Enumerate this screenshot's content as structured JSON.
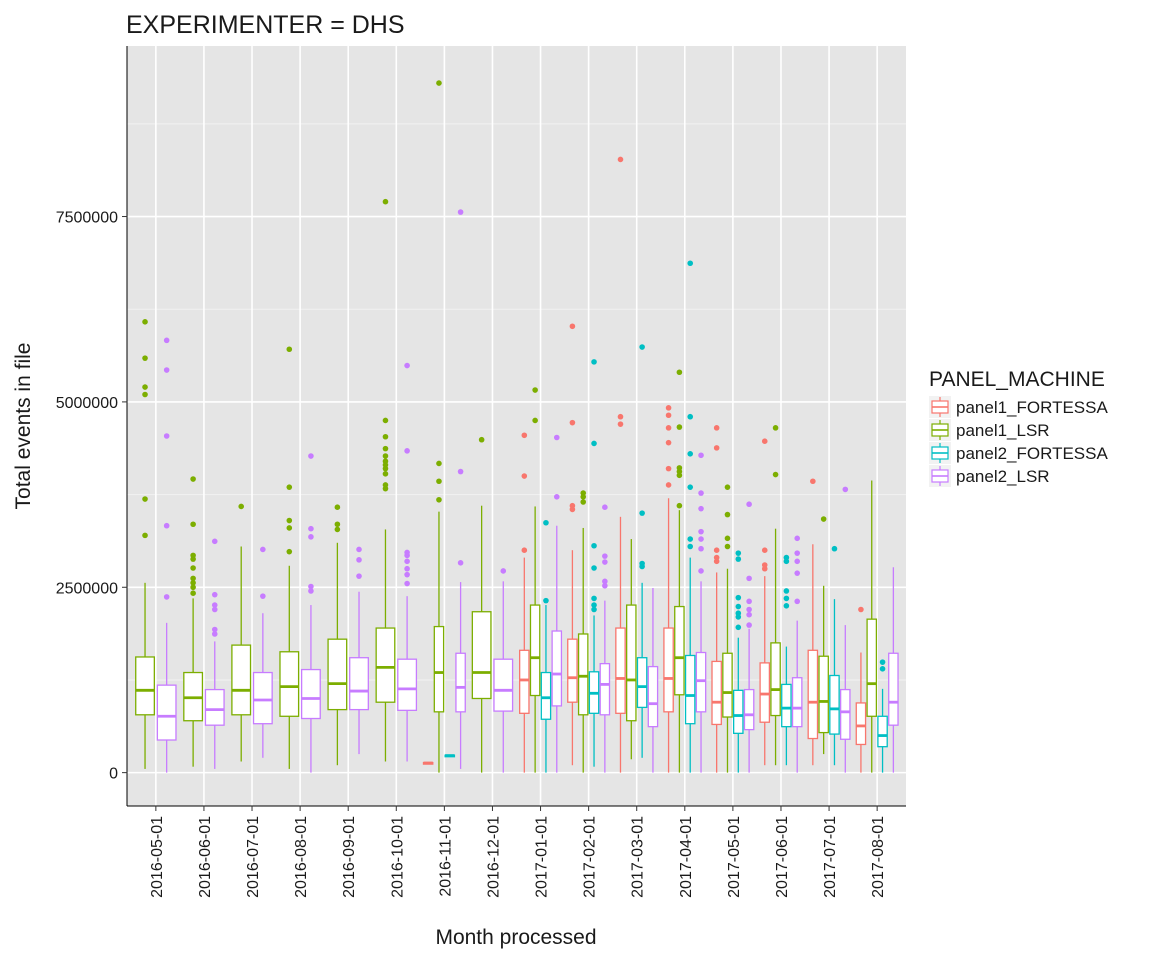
{
  "chart_data": {
    "type": "boxplot",
    "title": "EXPERIMENTER = DHS",
    "xlabel": "Month processed",
    "ylabel": "Total events in file",
    "ylim": [
      -450000,
      9800000
    ],
    "yticks": [
      0,
      2500000,
      5000000,
      7500000
    ],
    "ytick_labels": [
      "0",
      "2500000",
      "5000000",
      "7500000"
    ],
    "grid": true,
    "legend": {
      "title": "PANEL_MACHINE",
      "position": "right"
    },
    "categories": [
      "2016-05-01",
      "2016-06-01",
      "2016-07-01",
      "2016-08-01",
      "2016-09-01",
      "2016-10-01",
      "2016-11-01",
      "2016-12-01",
      "2017-01-01",
      "2017-02-01",
      "2017-03-01",
      "2017-04-01",
      "2017-05-01",
      "2017-06-01",
      "2017-07-01",
      "2017-08-01"
    ],
    "series": [
      {
        "name": "panel1_FORTESSA",
        "color": "#F8766D",
        "boxes": [
          {
            "cat": "2016-11-01",
            "lo": 130000,
            "q1": 130000,
            "med": 130000,
            "q3": 135000,
            "hi": 135000,
            "out": []
          },
          {
            "cat": "2017-01-01",
            "lo": 0,
            "q1": 800000,
            "med": 1250000,
            "q3": 1650000,
            "hi": 2900000,
            "out": [
              3000000,
              4000000,
              4550000
            ]
          },
          {
            "cat": "2017-02-01",
            "lo": 100000,
            "q1": 950000,
            "med": 1280000,
            "q3": 1800000,
            "hi": 3000000,
            "out": [
              3550000,
              3600000,
              4720000,
              6020000
            ]
          },
          {
            "cat": "2017-03-01",
            "lo": 0,
            "q1": 800000,
            "med": 1270000,
            "q3": 1950000,
            "hi": 3450000,
            "out": [
              4700000,
              4800000,
              8270000
            ]
          },
          {
            "cat": "2017-04-01",
            "lo": 0,
            "q1": 820000,
            "med": 1270000,
            "q3": 1950000,
            "hi": 3700000,
            "out": [
              3880000,
              4100000,
              4450000,
              4650000,
              4820000,
              4920000
            ]
          },
          {
            "cat": "2017-05-01",
            "lo": 0,
            "q1": 650000,
            "med": 950000,
            "q3": 1500000,
            "hi": 2700000,
            "out": [
              2850000,
              2900000,
              3000000,
              4380000,
              4650000
            ]
          },
          {
            "cat": "2017-06-01",
            "lo": 100000,
            "q1": 680000,
            "med": 1060000,
            "q3": 1480000,
            "hi": 2650000,
            "out": [
              2750000,
              2800000,
              3000000,
              4470000
            ]
          },
          {
            "cat": "2017-07-01",
            "lo": 100000,
            "q1": 460000,
            "med": 950000,
            "q3": 1650000,
            "hi": 3080000,
            "out": [
              3930000
            ]
          },
          {
            "cat": "2017-08-01",
            "lo": 0,
            "q1": 380000,
            "med": 630000,
            "q3": 940000,
            "hi": 1620000,
            "out": [
              2200000
            ]
          }
        ]
      },
      {
        "name": "panel1_LSR",
        "color": "#7CAE00",
        "boxes": [
          {
            "cat": "2016-05-01",
            "lo": 50000,
            "q1": 780000,
            "med": 1110000,
            "q3": 1560000,
            "hi": 2560000,
            "out": [
              3200000,
              3690000,
              5100000,
              5200000,
              5590000,
              6080000
            ]
          },
          {
            "cat": "2016-06-01",
            "lo": 80000,
            "q1": 700000,
            "med": 1010000,
            "q3": 1350000,
            "hi": 2350000,
            "out": [
              2420000,
              2500000,
              2560000,
              2620000,
              2760000,
              2880000,
              2930000,
              3350000,
              3960000
            ]
          },
          {
            "cat": "2016-07-01",
            "lo": 150000,
            "q1": 780000,
            "med": 1110000,
            "q3": 1720000,
            "hi": 3050000,
            "out": [
              3590000
            ]
          },
          {
            "cat": "2016-08-01",
            "lo": 50000,
            "q1": 760000,
            "med": 1160000,
            "q3": 1630000,
            "hi": 2790000,
            "out": [
              2980000,
              3300000,
              3400000,
              3850000,
              5710000
            ]
          },
          {
            "cat": "2016-09-01",
            "lo": 100000,
            "q1": 850000,
            "med": 1200000,
            "q3": 1800000,
            "hi": 3100000,
            "out": [
              3280000,
              3350000,
              3580000
            ]
          },
          {
            "cat": "2016-10-01",
            "lo": 150000,
            "q1": 950000,
            "med": 1420000,
            "q3": 1950000,
            "hi": 3280000,
            "out": [
              3830000,
              3880000,
              4030000,
              4100000,
              4150000,
              4200000,
              4270000,
              4370000,
              4530000,
              4750000,
              7700000
            ]
          },
          {
            "cat": "2016-11-01",
            "lo": 0,
            "q1": 820000,
            "med": 1350000,
            "q3": 1970000,
            "hi": 3520000,
            "out": [
              3680000,
              3930000,
              4170000,
              9300000
            ]
          },
          {
            "cat": "2016-12-01",
            "lo": 0,
            "q1": 1000000,
            "med": 1350000,
            "q3": 2170000,
            "hi": 3600000,
            "out": [
              4490000
            ]
          },
          {
            "cat": "2017-01-01",
            "lo": 0,
            "q1": 1040000,
            "med": 1550000,
            "q3": 2260000,
            "hi": 3590000,
            "out": [
              4750000,
              5160000
            ]
          },
          {
            "cat": "2017-02-01",
            "lo": 0,
            "q1": 780000,
            "med": 1300000,
            "q3": 1870000,
            "hi": 3300000,
            "out": [
              3650000,
              3720000,
              3770000
            ]
          },
          {
            "cat": "2017-03-01",
            "lo": 180000,
            "q1": 700000,
            "med": 1250000,
            "q3": 2260000,
            "hi": 3150000,
            "out": []
          },
          {
            "cat": "2017-04-01",
            "lo": 0,
            "q1": 1050000,
            "med": 1550000,
            "q3": 2240000,
            "hi": 3540000,
            "out": [
              3600000,
              4010000,
              4060000,
              4110000,
              4660000,
              5400000
            ]
          },
          {
            "cat": "2017-05-01",
            "lo": 0,
            "q1": 750000,
            "med": 1080000,
            "q3": 1610000,
            "hi": 2750000,
            "out": [
              3050000,
              3160000,
              3480000,
              3850000
            ]
          },
          {
            "cat": "2017-06-01",
            "lo": 100000,
            "q1": 770000,
            "med": 1120000,
            "q3": 1750000,
            "hi": 3290000,
            "out": [
              4020000,
              4650000
            ]
          },
          {
            "cat": "2017-07-01",
            "lo": 250000,
            "q1": 540000,
            "med": 960000,
            "q3": 1570000,
            "hi": 2520000,
            "out": [
              3420000
            ]
          },
          {
            "cat": "2017-08-01",
            "lo": 0,
            "q1": 760000,
            "med": 1200000,
            "q3": 2070000,
            "hi": 3940000,
            "out": []
          }
        ]
      },
      {
        "name": "panel2_FORTESSA",
        "color": "#00BFC4",
        "boxes": [
          {
            "cat": "2016-11-01",
            "lo": 230000,
            "q1": 230000,
            "med": 230000,
            "q3": 235000,
            "hi": 235000,
            "out": []
          },
          {
            "cat": "2017-01-01",
            "lo": 0,
            "q1": 720000,
            "med": 1010000,
            "q3": 1350000,
            "hi": 2260000,
            "out": [
              2320000,
              3370000
            ]
          },
          {
            "cat": "2017-02-01",
            "lo": 80000,
            "q1": 800000,
            "med": 1070000,
            "q3": 1360000,
            "hi": 2120000,
            "out": [
              2200000,
              2260000,
              2350000,
              2760000,
              3060000,
              4440000,
              5540000
            ]
          },
          {
            "cat": "2017-03-01",
            "lo": 200000,
            "q1": 880000,
            "med": 1160000,
            "q3": 1550000,
            "hi": 2560000,
            "out": [
              2780000,
              2820000,
              3500000,
              5740000
            ]
          },
          {
            "cat": "2017-04-01",
            "lo": 0,
            "q1": 660000,
            "med": 1040000,
            "q3": 1580000,
            "hi": 2900000,
            "out": [
              3050000,
              3150000,
              3850000,
              4300000,
              4800000,
              6870000
            ]
          },
          {
            "cat": "2017-05-01",
            "lo": 0,
            "q1": 530000,
            "med": 770000,
            "q3": 1110000,
            "hi": 1820000,
            "out": [
              1960000,
              2100000,
              2150000,
              2240000,
              2360000,
              2880000,
              2960000
            ]
          },
          {
            "cat": "2017-06-01",
            "lo": 100000,
            "q1": 620000,
            "med": 870000,
            "q3": 1190000,
            "hi": 1700000,
            "out": [
              2250000,
              2350000,
              2450000,
              2850000,
              2900000
            ]
          },
          {
            "cat": "2017-07-01",
            "lo": 100000,
            "q1": 520000,
            "med": 860000,
            "q3": 1310000,
            "hi": 2340000,
            "out": [
              3020000
            ]
          },
          {
            "cat": "2017-08-01",
            "lo": 0,
            "q1": 350000,
            "med": 500000,
            "q3": 760000,
            "hi": 1130000,
            "out": [
              1400000,
              1490000
            ]
          }
        ]
      },
      {
        "name": "panel2_LSR",
        "color": "#C77CFF",
        "boxes": [
          {
            "cat": "2016-05-01",
            "lo": 0,
            "q1": 440000,
            "med": 760000,
            "q3": 1180000,
            "hi": 2020000,
            "out": [
              2370000,
              3330000,
              4540000,
              5430000,
              5830000
            ]
          },
          {
            "cat": "2016-06-01",
            "lo": 50000,
            "q1": 640000,
            "med": 850000,
            "q3": 1120000,
            "hi": 1770000,
            "out": [
              1870000,
              1930000,
              2200000,
              2260000,
              2400000,
              3120000
            ]
          },
          {
            "cat": "2016-07-01",
            "lo": 200000,
            "q1": 660000,
            "med": 980000,
            "q3": 1350000,
            "hi": 2150000,
            "out": [
              2380000,
              3010000
            ]
          },
          {
            "cat": "2016-08-01",
            "lo": 0,
            "q1": 730000,
            "med": 1000000,
            "q3": 1390000,
            "hi": 2260000,
            "out": [
              2450000,
              2510000,
              3180000,
              3290000,
              4270000
            ]
          },
          {
            "cat": "2016-09-01",
            "lo": 250000,
            "q1": 850000,
            "med": 1100000,
            "q3": 1550000,
            "hi": 2440000,
            "out": [
              2650000,
              2870000,
              3010000
            ]
          },
          {
            "cat": "2016-10-01",
            "lo": 150000,
            "q1": 840000,
            "med": 1130000,
            "q3": 1530000,
            "hi": 2380000,
            "out": [
              2550000,
              2670000,
              2750000,
              2850000,
              2930000,
              2970000,
              4340000,
              5490000
            ]
          },
          {
            "cat": "2016-11-01",
            "lo": 50000,
            "q1": 820000,
            "med": 1150000,
            "q3": 1610000,
            "hi": 2570000,
            "out": [
              2830000,
              4060000,
              7560000
            ]
          },
          {
            "cat": "2016-12-01",
            "lo": 0,
            "q1": 830000,
            "med": 1110000,
            "q3": 1530000,
            "hi": 2580000,
            "out": [
              2720000
            ]
          },
          {
            "cat": "2017-01-01",
            "lo": 0,
            "q1": 900000,
            "med": 1330000,
            "q3": 1910000,
            "hi": 3330000,
            "out": [
              3720000,
              4520000
            ]
          },
          {
            "cat": "2017-02-01",
            "lo": 0,
            "q1": 780000,
            "med": 1190000,
            "q3": 1470000,
            "hi": 2320000,
            "out": [
              2520000,
              2580000,
              2840000,
              2920000,
              3580000
            ]
          },
          {
            "cat": "2017-03-01",
            "lo": 0,
            "q1": 620000,
            "med": 930000,
            "q3": 1430000,
            "hi": 2490000,
            "out": []
          },
          {
            "cat": "2017-04-01",
            "lo": 0,
            "q1": 820000,
            "med": 1240000,
            "q3": 1620000,
            "hi": 2580000,
            "out": [
              2720000,
              3020000,
              3150000,
              3250000,
              3560000,
              3770000,
              4280000
            ]
          },
          {
            "cat": "2017-05-01",
            "lo": 0,
            "q1": 580000,
            "med": 780000,
            "q3": 1120000,
            "hi": 1940000,
            "out": [
              1990000,
              2130000,
              2200000,
              2310000,
              2620000,
              3620000
            ]
          },
          {
            "cat": "2017-06-01",
            "lo": 0,
            "q1": 620000,
            "med": 870000,
            "q3": 1280000,
            "hi": 2050000,
            "out": [
              2310000,
              2690000,
              2850000,
              2960000,
              3160000
            ]
          },
          {
            "cat": "2017-07-01",
            "lo": 0,
            "q1": 450000,
            "med": 820000,
            "q3": 1120000,
            "hi": 1990000,
            "out": [
              3820000
            ]
          },
          {
            "cat": "2017-08-01",
            "lo": 0,
            "q1": 640000,
            "med": 950000,
            "q3": 1610000,
            "hi": 2770000,
            "out": []
          }
        ]
      }
    ]
  }
}
